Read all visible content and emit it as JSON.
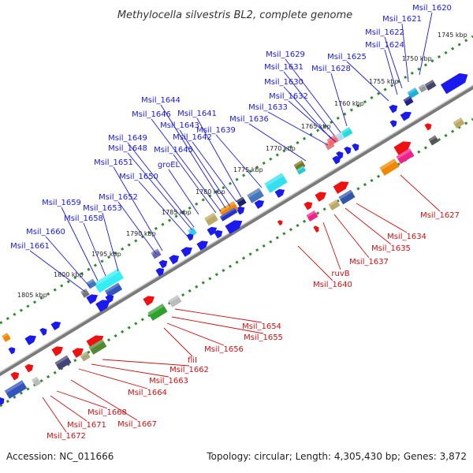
{
  "title": "Methylocella silvestris BL2, complete genome",
  "footer": {
    "accession": "Accession: NC_011666",
    "summary": "Topology: circular; Length: 4,305,430 bp; Genes: 3,872"
  },
  "colors": {
    "backbone": "#8a8a8a",
    "scale_dots": "#2e8b2e",
    "top_label": "#1a1adc",
    "bottom_label": "#cc1111"
  },
  "ticks": [
    "1745 kbp",
    "1750 kbp",
    "1755 kbp",
    "1760 kbp",
    "1765 kbp",
    "1770 kbp",
    "1775 kbp",
    "1780 kbp",
    "1785 kbp",
    "1790 kbp",
    "1795 kbp",
    "1800 kbp",
    "1805 kbp"
  ],
  "top_labels": [
    "Msil_1620",
    "Msil_1621",
    "Msil_1622",
    "Msil_1624",
    "Msil_1625",
    "Msil_1628",
    "Msil_1629",
    "Msil_1631",
    "Msil_1630",
    "Msil_1632",
    "Msil_1633",
    "Msil_1636",
    "Msil_1639",
    "Msil_1641",
    "Msil_1642",
    "Msil_1643",
    "Msil_1644",
    "Msil_1646",
    "Msil_1645",
    "Msil_1649",
    "Msil_1648",
    "groEL",
    "Msil_1650",
    "Msil_1651",
    "Msil_1652",
    "Msil_1653",
    "Msil_1658",
    "Msil_1659",
    "Msil_1660",
    "Msil_1661"
  ],
  "bottom_labels": [
    "Msil_1627",
    "Msil_1634",
    "Msil_1635",
    "Msil_1637",
    "ruvB",
    "Msil_1640",
    "Msil_1654",
    "Msil_1655",
    "Msil_1656",
    "fliI",
    "Msil_1662",
    "Msil_1663",
    "Msil_1664",
    "Msil_1667",
    "Msil_1668",
    "Msil_1671",
    "Msil_1672"
  ]
}
